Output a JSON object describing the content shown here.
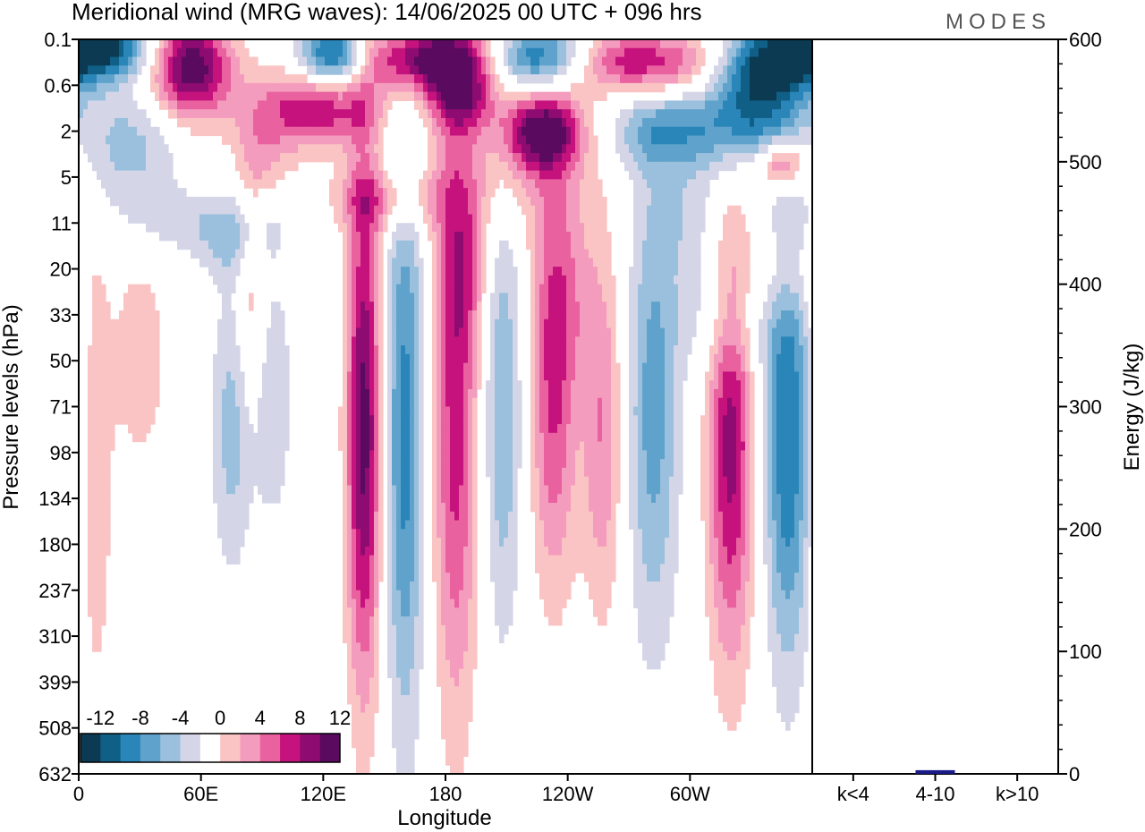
{
  "chart_data": {
    "type": "heatmap",
    "title": "Meridional wind (MRG waves):  14/06/2025  00 UTC  + 096 hrs",
    "logo": "MODES",
    "xlabel": "Longitude",
    "ylabel": "Pressure levels (hPa)",
    "x_ticks": [
      "0",
      "60E",
      "120E",
      "180",
      "120W",
      "60W"
    ],
    "y_ticks": [
      "0.1",
      "0.6",
      "2",
      "5",
      "11",
      "20",
      "33",
      "50",
      "71",
      "98",
      "134",
      "180",
      "237",
      "310",
      "399",
      "508",
      "632"
    ],
    "colorbar": {
      "labels": [
        "-12",
        "-8",
        "-4",
        "0",
        "4",
        "8",
        "12"
      ],
      "levels": [
        -14,
        -12,
        -10,
        -8,
        -6,
        -4,
        -2,
        2,
        4,
        6,
        8,
        10,
        12,
        14
      ],
      "colors": [
        "#0b3a52",
        "#105f86",
        "#2a86b8",
        "#5fa3cc",
        "#9ac0dd",
        "#d4d6e8",
        "#ffffff",
        "#fbc4c4",
        "#f49cbd",
        "#e9619f",
        "#c6127c",
        "#8e0c72",
        "#5a0a5f"
      ]
    },
    "features": [
      {
        "lon": 140,
        "lev": 8.5,
        "amp": 13,
        "lonw": 6,
        "levw": 4.0
      },
      {
        "lon": 160,
        "lev": 8.6,
        "amp": -9,
        "lonw": 7,
        "levw": 4.5
      },
      {
        "lon": 185,
        "lev": 8.3,
        "amp": 9,
        "lonw": 8,
        "levw": 4.5
      },
      {
        "lon": 208,
        "lev": 8.0,
        "amp": -6,
        "lonw": 7,
        "levw": 3.5
      },
      {
        "lon": 233,
        "lev": 7.8,
        "amp": 8,
        "lonw": 8,
        "levw": 3.0
      },
      {
        "lon": 257,
        "lev": 8.6,
        "amp": 6,
        "lonw": 7,
        "levw": 2.8
      },
      {
        "lon": 282,
        "lev": 8.2,
        "amp": -7,
        "lonw": 9,
        "levw": 3.5
      },
      {
        "lon": 320,
        "lev": 8.6,
        "amp": 11,
        "lonw": 8,
        "levw": 3.5
      },
      {
        "lon": 348,
        "lev": 8.7,
        "amp": -10,
        "lonw": 8,
        "levw": 3.5
      },
      {
        "lon": 75,
        "lev": 8.5,
        "amp": -5,
        "lonw": 7,
        "levw": 2.2
      },
      {
        "lon": 95,
        "lev": 7.8,
        "amp": -4,
        "lonw": 7,
        "levw": 2.0
      },
      {
        "lon": 30,
        "lev": 7.0,
        "amp": 4,
        "lonw": 9,
        "levw": 1.5
      },
      {
        "lon": 8,
        "lev": 9.5,
        "amp": 4,
        "lonw": 6,
        "levw": 3.5
      },
      {
        "lon": 85,
        "lev": 5.7,
        "amp": 4,
        "lonw": 5,
        "levw": 1.8
      },
      {
        "lon": 190,
        "lev": 5.1,
        "amp": 4,
        "lonw": 8,
        "levw": 1.2
      },
      {
        "lon": 320,
        "lev": 6.0,
        "amp": -4,
        "lonw": 18,
        "levw": 1.0
      },
      {
        "lon": 345,
        "lev": 5.2,
        "amp": 3.5,
        "lonw": 12,
        "levw": 0.8
      },
      {
        "lon": 240,
        "lev": 5.5,
        "amp": 3.5,
        "lonw": 10,
        "levw": 1.5
      },
      {
        "lon": 210,
        "lev": 3.0,
        "amp": 3.2,
        "lonw": 30,
        "levw": 1.0
      },
      {
        "lon": 75,
        "lev": 4.5,
        "amp": -3,
        "lonw": 12,
        "levw": 0.6
      },
      {
        "lon": 300,
        "lev": 3.8,
        "amp": -3,
        "lonw": 14,
        "levw": 0.9
      },
      {
        "lon": 10,
        "lev": 0.15,
        "amp": -13,
        "lonw": 18,
        "levw": 0.5
      },
      {
        "lon": 55,
        "lev": 0.6,
        "amp": 14,
        "lonw": 14,
        "levw": 0.8
      },
      {
        "lon": 115,
        "lev": 1.5,
        "amp": 10,
        "lonw": 22,
        "levw": 0.6
      },
      {
        "lon": 125,
        "lev": 0.35,
        "amp": -13,
        "lonw": 12,
        "levw": 0.5
      },
      {
        "lon": 175,
        "lev": 0.4,
        "amp": 14,
        "lonw": 25,
        "levw": 0.5
      },
      {
        "lon": 188,
        "lev": 1.3,
        "amp": 9,
        "lonw": 12,
        "levw": 0.5
      },
      {
        "lon": 225,
        "lev": 0.4,
        "amp": -13,
        "lonw": 18,
        "levw": 0.5
      },
      {
        "lon": 228,
        "lev": 2.0,
        "amp": 13,
        "lonw": 14,
        "levw": 0.6
      },
      {
        "lon": 275,
        "lev": 0.5,
        "amp": 10,
        "lonw": 28,
        "levw": 0.5
      },
      {
        "lon": 340,
        "lev": 0.5,
        "amp": -10,
        "lonw": 18,
        "levw": 0.6
      },
      {
        "lon": 330,
        "lev": 1.6,
        "amp": -9,
        "lonw": 16,
        "levw": 0.9
      },
      {
        "lon": 290,
        "lev": 2.0,
        "amp": -7,
        "lonw": 22,
        "levw": 0.6
      },
      {
        "lon": 345,
        "lev": 2.7,
        "amp": 10,
        "lonw": 9,
        "levw": 0.4
      },
      {
        "lon": 25,
        "lev": 2.3,
        "amp": -5,
        "lonw": 18,
        "levw": 0.9
      },
      {
        "lon": 90,
        "lev": 2.6,
        "amp": 4,
        "lonw": 10,
        "levw": 0.6
      },
      {
        "lon": 150,
        "lev": 3.5,
        "amp": 5,
        "lonw": 20,
        "levw": 0.5
      },
      {
        "lon": 60,
        "lev": 4.0,
        "amp": -3,
        "lonw": 30,
        "levw": 0.5
      }
    ],
    "energy": {
      "ylabel": "Energy (J/kg)",
      "ylim": [
        0,
        600
      ],
      "y_ticks": [
        "0",
        "100",
        "200",
        "300",
        "400",
        "500",
        "600"
      ],
      "categories": [
        "k<4",
        "4-10",
        "k>10"
      ],
      "values": [
        0,
        3,
        0
      ],
      "bar_color": "#1a1a8a"
    }
  }
}
